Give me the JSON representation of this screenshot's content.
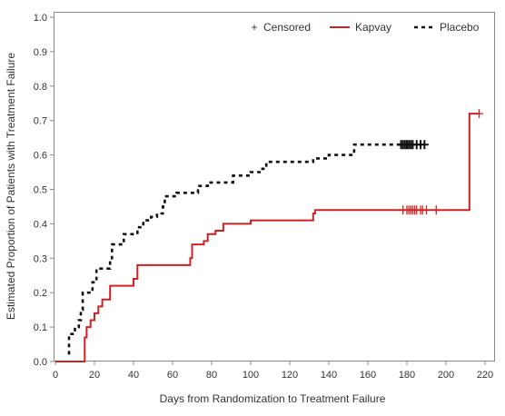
{
  "chart_data": {
    "type": "line",
    "title": "",
    "xlabel": "Days from Randomization to Treatment Failure",
    "ylabel": "Estimated Proportion of Patients with Treatment Failure",
    "xlim": [
      0,
      220
    ],
    "ylim": [
      0,
      1.0
    ],
    "xticks": [
      0,
      20,
      40,
      60,
      80,
      100,
      120,
      140,
      160,
      180,
      200,
      220
    ],
    "yticks": [
      "0.0",
      "0.1",
      "0.2",
      "0.3",
      "0.4",
      "0.5",
      "0.6",
      "0.7",
      "0.8",
      "0.9",
      "1.0"
    ],
    "grid": false,
    "legend": {
      "placement": "top-right",
      "entries": [
        {
          "label": "Censored",
          "marker": "+"
        },
        {
          "label": "Kapvay",
          "series": "kapvay"
        },
        {
          "label": "Placebo",
          "series": "placebo"
        }
      ]
    },
    "series": [
      {
        "name": "Kapvay",
        "key": "kapvay",
        "color": "#cc2222",
        "style": "solid",
        "step": true,
        "points": [
          [
            0,
            0
          ],
          [
            15,
            0
          ],
          [
            15,
            0.07
          ],
          [
            16,
            0.1
          ],
          [
            18,
            0.1
          ],
          [
            18,
            0.12
          ],
          [
            20,
            0.14
          ],
          [
            22,
            0.16
          ],
          [
            24,
            0.18
          ],
          [
            28,
            0.18
          ],
          [
            28,
            0.22
          ],
          [
            40,
            0.22
          ],
          [
            40,
            0.24
          ],
          [
            42,
            0.25
          ],
          [
            42,
            0.28
          ],
          [
            68,
            0.28
          ],
          [
            69,
            0.3
          ],
          [
            70,
            0.32
          ],
          [
            70,
            0.34
          ],
          [
            75,
            0.34
          ],
          [
            76,
            0.35
          ],
          [
            78,
            0.37
          ],
          [
            82,
            0.37
          ],
          [
            82,
            0.38
          ],
          [
            86,
            0.4
          ],
          [
            100,
            0.4
          ],
          [
            100,
            0.41
          ],
          [
            132,
            0.41
          ],
          [
            132,
            0.43
          ],
          [
            133,
            0.44
          ],
          [
            212,
            0.44
          ],
          [
            212,
            0.72
          ],
          [
            217,
            0.72
          ]
        ],
        "censored_x": [
          178,
          180,
          181,
          182,
          183,
          184,
          185,
          187,
          188,
          190,
          195,
          217
        ]
      },
      {
        "name": "Placebo",
        "key": "placebo",
        "color": "#111111",
        "style": "dashed",
        "step": true,
        "points": [
          [
            7,
            0.02
          ],
          [
            7,
            0.08
          ],
          [
            10,
            0.1
          ],
          [
            12,
            0.12
          ],
          [
            13,
            0.15
          ],
          [
            14,
            0.2
          ],
          [
            18,
            0.2
          ],
          [
            19,
            0.23
          ],
          [
            21,
            0.27
          ],
          [
            26,
            0.27
          ],
          [
            28,
            0.3
          ],
          [
            29,
            0.34
          ],
          [
            34,
            0.34
          ],
          [
            35,
            0.37
          ],
          [
            40,
            0.37
          ],
          [
            42,
            0.39
          ],
          [
            45,
            0.41
          ],
          [
            49,
            0.42
          ],
          [
            52,
            0.43
          ],
          [
            55,
            0.45
          ],
          [
            56,
            0.48
          ],
          [
            62,
            0.49
          ],
          [
            72,
            0.49
          ],
          [
            73,
            0.51
          ],
          [
            78,
            0.52
          ],
          [
            90,
            0.52
          ],
          [
            91,
            0.54
          ],
          [
            100,
            0.55
          ],
          [
            106,
            0.56
          ],
          [
            108,
            0.58
          ],
          [
            130,
            0.58
          ],
          [
            132,
            0.59
          ],
          [
            140,
            0.6
          ],
          [
            150,
            0.6
          ],
          [
            153,
            0.63
          ],
          [
            178,
            0.63
          ]
        ],
        "censored_x": [
          177,
          178,
          179,
          180,
          181,
          182,
          183,
          185,
          187,
          189
        ]
      }
    ]
  }
}
